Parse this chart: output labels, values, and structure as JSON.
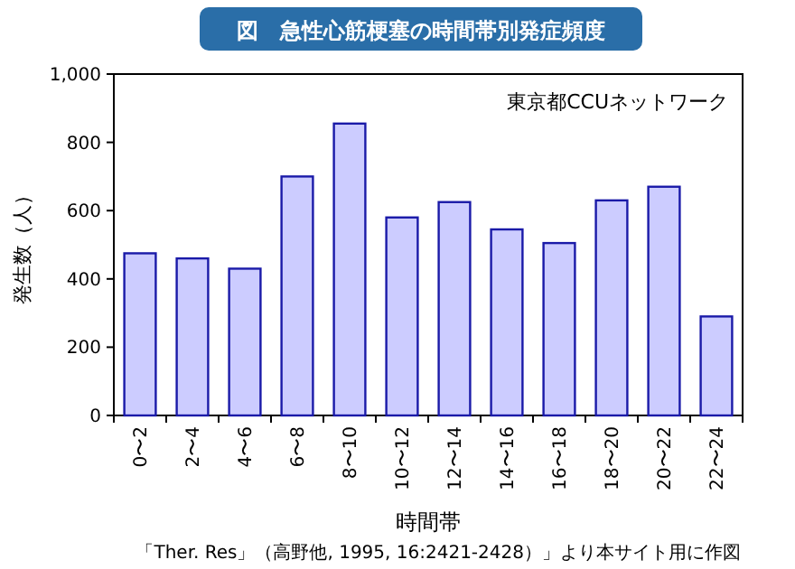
{
  "chart_data": {
    "type": "bar",
    "title": "図　急性心筋梗塞の時間帯別発症頻度",
    "xlabel": "時間帯",
    "ylabel": "発生数（人）",
    "categories": [
      "0〜2",
      "2〜4",
      "4〜6",
      "6〜8",
      "8〜10",
      "10〜12",
      "12〜14",
      "14〜16",
      "16〜18",
      "18〜20",
      "20〜22",
      "22〜24"
    ],
    "values": [
      475,
      460,
      430,
      700,
      855,
      580,
      625,
      545,
      505,
      630,
      670,
      290
    ],
    "color": "#ccccff",
    "ylim": [
      0,
      1000
    ],
    "yticks": [
      0,
      {
        "value": 200,
        "label": "200"
      },
      400,
      600,
      800,
      {
        "value": 1000,
        "label": "1,000"
      }
    ],
    "grid": false,
    "annotations": [
      "東京都CCUネットワーク",
      "「Ther. Res」（高野他, 1995, 16:2421-2428）」より本サイト用に作図"
    ]
  }
}
